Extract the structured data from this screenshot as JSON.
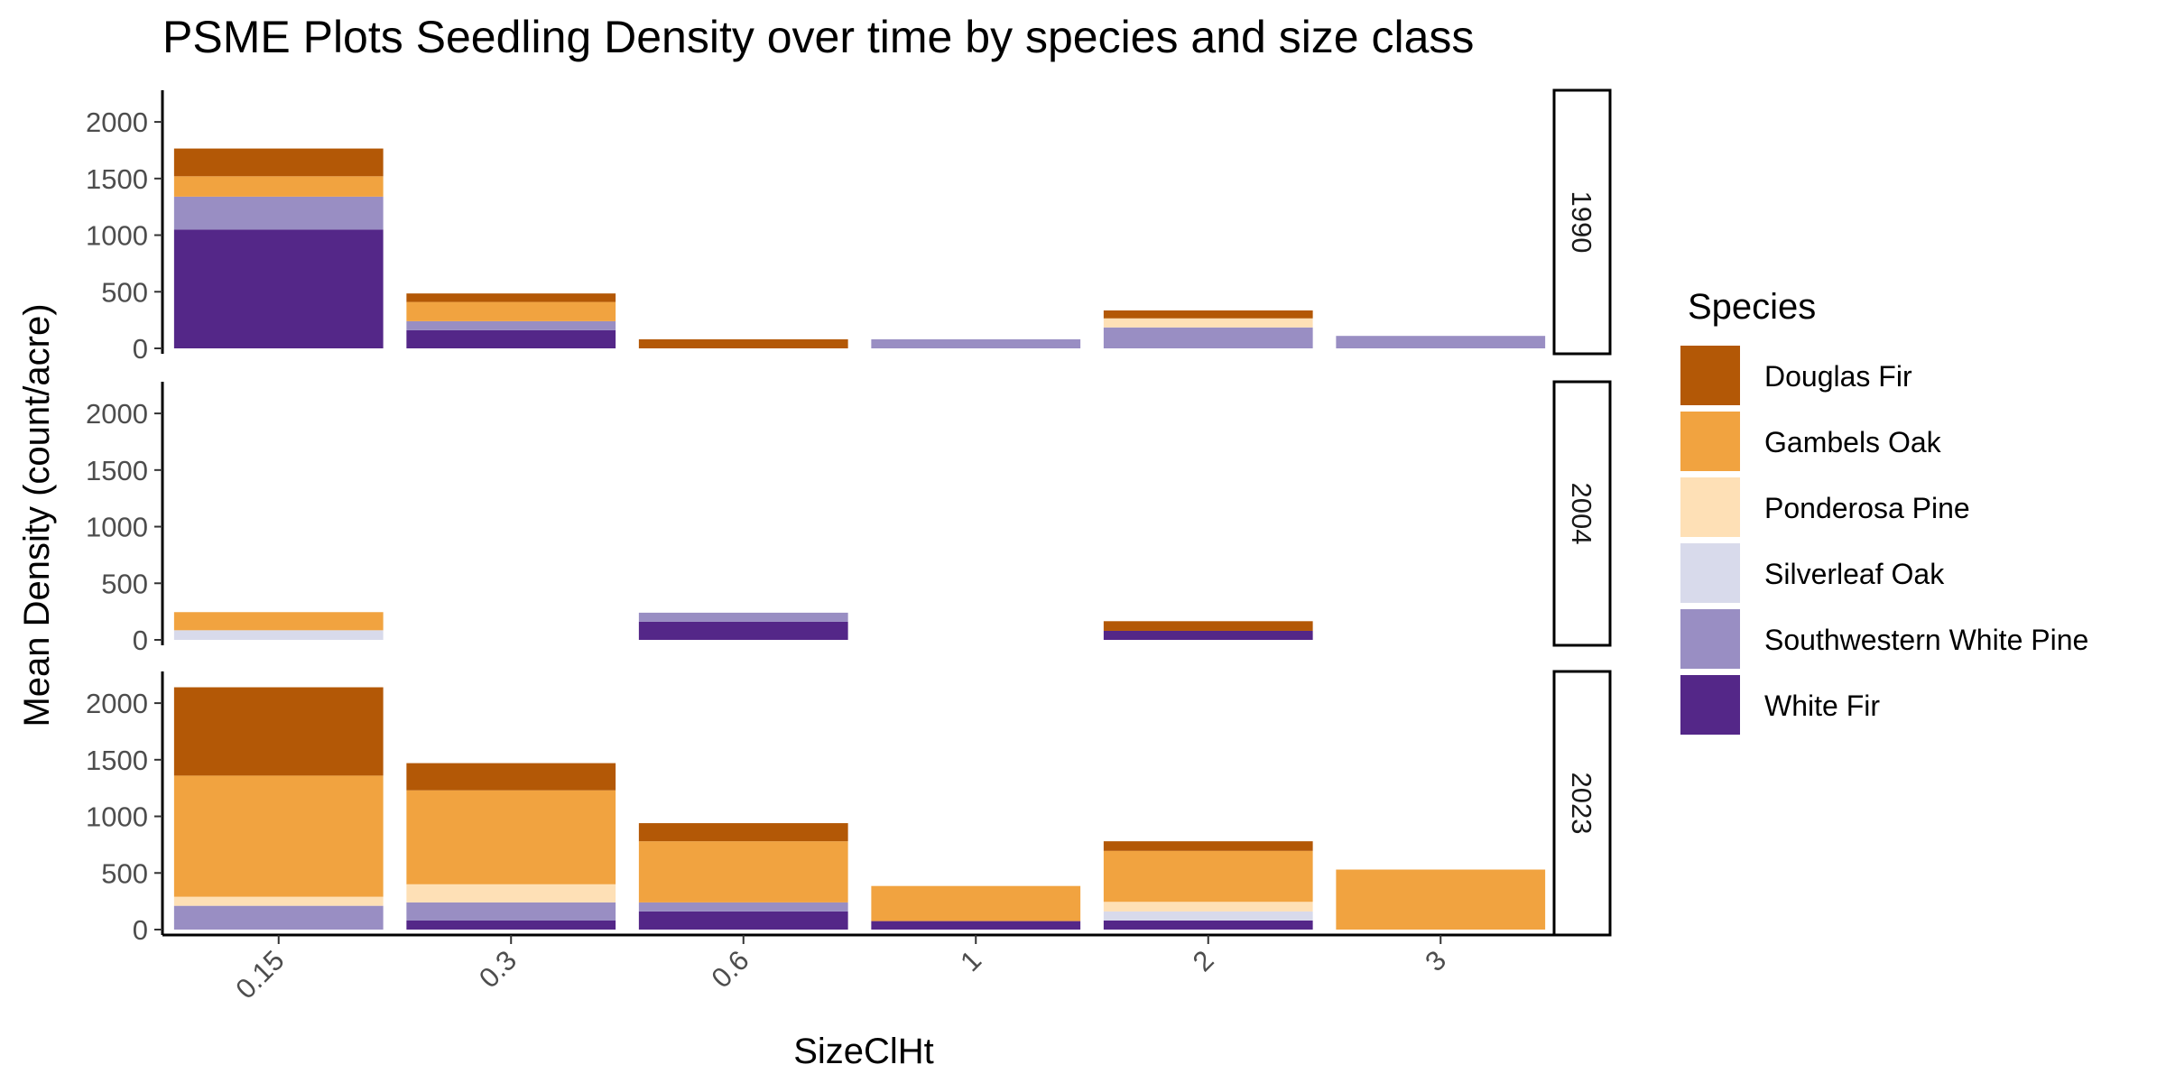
{
  "chart_data": {
    "type": "bar",
    "stacked": true,
    "title": "PSME Plots Seedling Density over time by species and size class",
    "xlabel": "SizeClHt",
    "ylabel": "Mean Density (count/acre)",
    "categories": [
      "0.15",
      "0.3",
      "0.6",
      "1",
      "2",
      "3"
    ],
    "ylim": [
      0,
      2200
    ],
    "yticks": [
      0,
      500,
      1000,
      1500,
      2000
    ],
    "grid": false,
    "legend_title": "Species",
    "legend_position": "right",
    "series": [
      {
        "name": "Douglas Fir",
        "color": "#b35806"
      },
      {
        "name": "Gambels Oak",
        "color": "#f1a340"
      },
      {
        "name": "Ponderosa Pine",
        "color": "#fee0b6"
      },
      {
        "name": "Silverleaf Oak",
        "color": "#d8daeb"
      },
      {
        "name": "Southwestern White Pine",
        "color": "#998ec3"
      },
      {
        "name": "White Fir",
        "color": "#542788"
      }
    ],
    "stack_order_bottom_to_top": [
      "White Fir",
      "Southwestern White Pine",
      "Silverleaf Oak",
      "Ponderosa Pine",
      "Gambels Oak",
      "Douglas Fir"
    ],
    "panels": [
      {
        "label": "1990",
        "values": {
          "Douglas Fir": [
            245,
            75,
            80,
            0,
            70,
            0
          ],
          "Gambels Oak": [
            180,
            170,
            0,
            0,
            0,
            0
          ],
          "Ponderosa Pine": [
            0,
            0,
            0,
            0,
            80,
            0
          ],
          "Silverleaf Oak": [
            0,
            0,
            0,
            0,
            0,
            0
          ],
          "Southwestern White Pine": [
            290,
            80,
            0,
            80,
            185,
            110
          ],
          "White Fir": [
            1050,
            160,
            0,
            0,
            0,
            0
          ]
        }
      },
      {
        "label": "2004",
        "values": {
          "Douglas Fir": [
            0,
            0,
            0,
            0,
            85,
            0
          ],
          "Gambels Oak": [
            160,
            0,
            0,
            0,
            0,
            0
          ],
          "Ponderosa Pine": [
            0,
            0,
            0,
            0,
            0,
            0
          ],
          "Silverleaf Oak": [
            85,
            0,
            0,
            0,
            0,
            0
          ],
          "Southwestern White Pine": [
            0,
            0,
            80,
            0,
            0,
            0
          ],
          "White Fir": [
            0,
            0,
            160,
            0,
            80,
            0
          ]
        }
      },
      {
        "label": "2023",
        "values": {
          "Douglas Fir": [
            780,
            240,
            160,
            0,
            85,
            0
          ],
          "Gambels Oak": [
            1070,
            830,
            540,
            310,
            450,
            530
          ],
          "Ponderosa Pine": [
            80,
            160,
            0,
            0,
            85,
            0
          ],
          "Silverleaf Oak": [
            0,
            0,
            0,
            0,
            80,
            0
          ],
          "Southwestern White Pine": [
            210,
            160,
            80,
            0,
            0,
            0
          ],
          "White Fir": [
            0,
            80,
            160,
            75,
            80,
            0
          ]
        }
      }
    ]
  }
}
